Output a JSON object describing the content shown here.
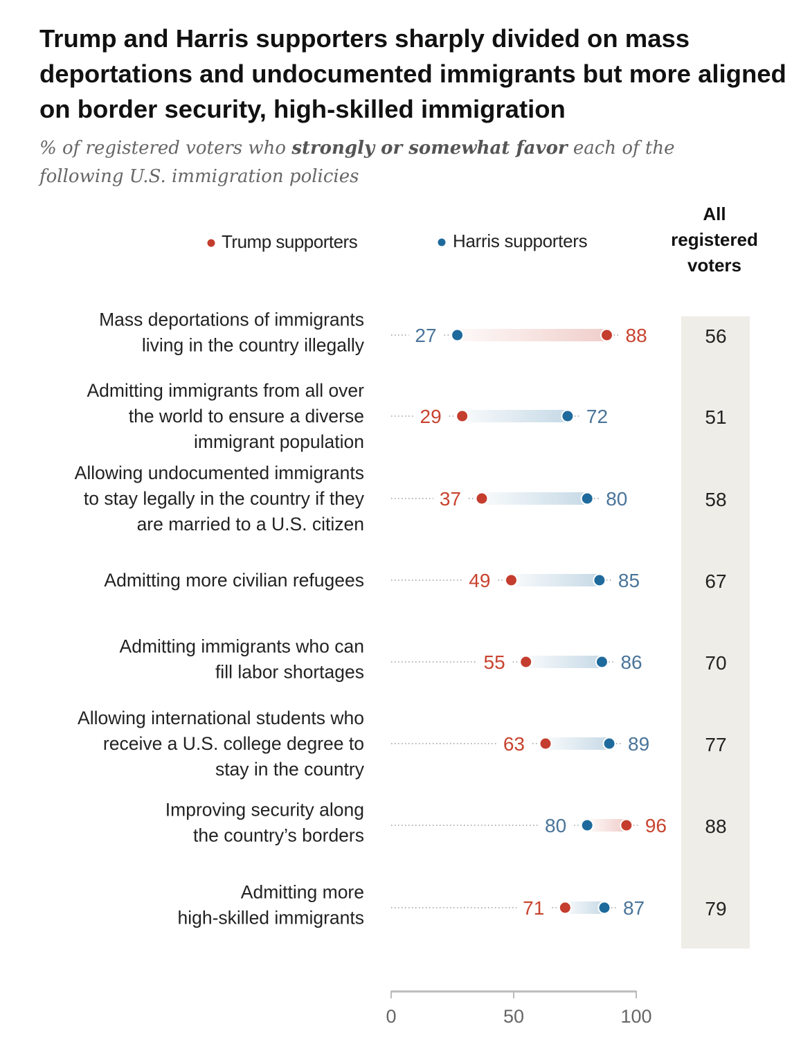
{
  "title": "Trump and Harris supporters sharply divided on mass deportations and undocumented immigrants but more aligned on border security, high-skilled immigration",
  "subtitle": {
    "pre": "% of registered voters who ",
    "bold": "strongly or somewhat favor",
    "post": " each of the following U.S. immigration policies"
  },
  "colors": {
    "trump": "#c43d2e",
    "harris": "#1f6a9c",
    "trump_text": "#c8432f",
    "harris_text": "#4a7499",
    "band": "#eeede7"
  },
  "chart_data": {
    "type": "dot-range",
    "legend": [
      "Trump supporters",
      "Harris supporters"
    ],
    "all_header": [
      "All",
      "registered",
      "voters"
    ],
    "xlim": [
      0,
      100
    ],
    "ticks": [
      "0",
      "50",
      "100"
    ],
    "tick_values": [
      0,
      50,
      100
    ],
    "rows": [
      {
        "label": [
          "Mass deportations of immigrants",
          "living in the country illegally"
        ],
        "trump": 88,
        "harris": 27,
        "all": 56
      },
      {
        "label": [
          "Admitting immigrants from all over",
          "the world to ensure a diverse",
          "immigrant population"
        ],
        "trump": 29,
        "harris": 72,
        "all": 51
      },
      {
        "label": [
          "Allowing undocumented immigrants",
          "to stay legally in the country if they",
          "are married to a U.S. citizen"
        ],
        "trump": 37,
        "harris": 80,
        "all": 58
      },
      {
        "label": [
          "Admitting more civilian refugees"
        ],
        "trump": 49,
        "harris": 85,
        "all": 67
      },
      {
        "label": [
          "Admitting immigrants who can",
          "fill labor shortages"
        ],
        "trump": 55,
        "harris": 86,
        "all": 70
      },
      {
        "label": [
          "Allowing international students who",
          "receive a U.S. college degree to",
          "stay in the country"
        ],
        "trump": 63,
        "harris": 89,
        "all": 77
      },
      {
        "label": [
          "Improving security along",
          "the country’s borders"
        ],
        "trump": 96,
        "harris": 80,
        "all": 88
      },
      {
        "label": [
          "Admitting more",
          "high-skilled immigrants"
        ],
        "trump": 71,
        "harris": 87,
        "all": 79
      }
    ]
  }
}
